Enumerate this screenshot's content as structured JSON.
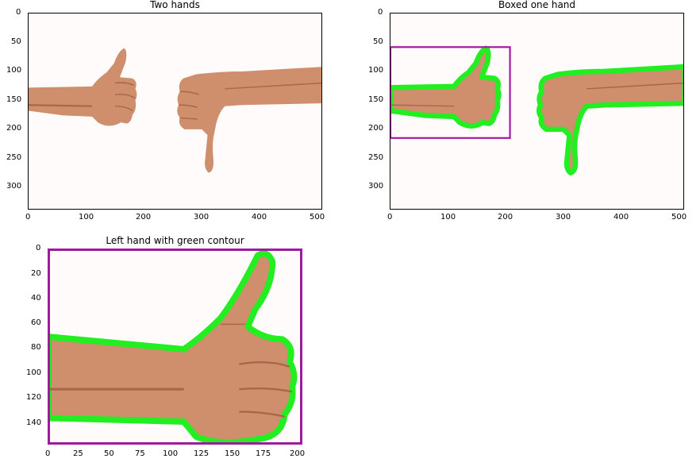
{
  "panels": [
    {
      "title": "Two hands",
      "xticks": [
        "0",
        "100",
        "200",
        "300",
        "400",
        "500"
      ],
      "yticks": [
        "0",
        "50",
        "100",
        "150",
        "200",
        "250",
        "300"
      ],
      "image": "two-hands-thumbs-up-and-down"
    },
    {
      "title": "Boxed one hand",
      "xticks": [
        "0",
        "100",
        "200",
        "300",
        "400",
        "500"
      ],
      "yticks": [
        "0",
        "50",
        "100",
        "150",
        "200",
        "250",
        "300"
      ],
      "image": "two-hands-green-contours-with-purple-box"
    },
    {
      "title": "Left hand with green contour",
      "xticks": [
        "0",
        "25",
        "50",
        "75",
        "100",
        "125",
        "150",
        "175",
        "200"
      ],
      "yticks": [
        "0",
        "20",
        "40",
        "60",
        "80",
        "100",
        "120",
        "140"
      ],
      "image": "cropped-thumbs-up-hand-with-green-contour"
    }
  ],
  "chart_data": [
    {
      "type": "image",
      "title": "Two hands",
      "xlim": [
        0,
        510
      ],
      "ylim": [
        340,
        0
      ],
      "xticks": [
        0,
        100,
        200,
        300,
        400,
        500
      ],
      "yticks": [
        0,
        50,
        100,
        150,
        200,
        250,
        300
      ]
    },
    {
      "type": "image",
      "title": "Boxed one hand",
      "xlim": [
        0,
        510
      ],
      "ylim": [
        340,
        0
      ],
      "xticks": [
        0,
        100,
        200,
        300,
        400,
        500
      ],
      "yticks": [
        0,
        50,
        100,
        150,
        200,
        250,
        300
      ],
      "bounding_box": {
        "x0": 0,
        "y0": 58,
        "x1": 207,
        "y1": 215
      }
    },
    {
      "type": "image",
      "title": "Left hand with green contour",
      "xlim": [
        0,
        207
      ],
      "ylim": [
        157,
        0
      ],
      "xticks": [
        0,
        25,
        50,
        75,
        100,
        125,
        150,
        175,
        200
      ],
      "yticks": [
        0,
        20,
        40,
        60,
        80,
        100,
        120,
        140
      ]
    }
  ],
  "colors": {
    "contour": "#22ee22",
    "box": "#a01aa0",
    "skin": "#cf8e6c",
    "skin_shadow": "#a9674a",
    "background": "#fffbfb"
  }
}
